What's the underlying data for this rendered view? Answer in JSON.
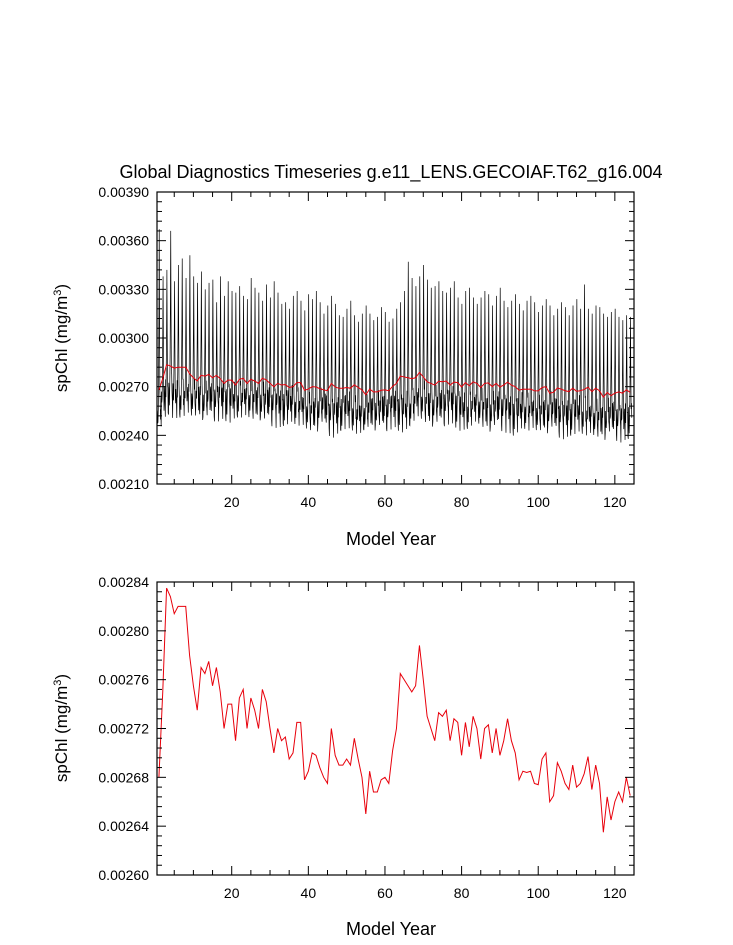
{
  "figure": {
    "title": "Global Diagnostics Timeseries g.e11_LENS.GECOIAF.T62_g16.004"
  },
  "chart_data": [
    {
      "type": "line",
      "xlabel": "Model Year",
      "ylabel_main": "spChl (mg/m",
      "ylabel_sup": "3",
      "ylabel_close": ")",
      "xlim": [
        0.5,
        125.0
      ],
      "ylim": [
        0.0021,
        0.0039
      ],
      "xticks": [
        20,
        40,
        60,
        80,
        100,
        120
      ],
      "xtick_labels": [
        "20",
        "40",
        "60",
        "80",
        "100",
        "120"
      ],
      "yticks": [
        0.0021,
        0.0024,
        0.0027,
        0.003,
        0.0033,
        0.0036,
        0.0039
      ],
      "ytick_labels": [
        "0.00210",
        "0.00240",
        "0.00270",
        "0.00300",
        "0.00330",
        "0.00360",
        "0.00390"
      ],
      "grid": false,
      "series": [
        {
          "color": "#000000",
          "description": "monthly values, seasonal cycle",
          "monthly_profile": [
            0.0,
            0.0,
            0.02,
            0.06,
            0.14,
            0.32,
            0.6,
            1.0,
            0.55,
            0.22,
            0.08,
            0.02
          ],
          "annual_peak_max": [
            0.00367,
            0.00338,
            0.00342,
            0.00366,
            0.00335,
            0.00345,
            0.00349,
            0.00337,
            0.00351,
            0.00338,
            0.00334,
            0.00341,
            0.0033,
            0.00334,
            0.00336,
            0.00322,
            0.00338,
            0.00326,
            0.00335,
            0.00329,
            0.00328,
            0.00332,
            0.00326,
            0.00324,
            0.00337,
            0.00331,
            0.00328,
            0.00323,
            0.00333,
            0.00325,
            0.00335,
            0.00328,
            0.00321,
            0.00322,
            0.00318,
            0.00326,
            0.00329,
            0.00323,
            0.00317,
            0.00327,
            0.00324,
            0.00329,
            0.00322,
            0.00315,
            0.0032,
            0.00326,
            0.00321,
            0.00314,
            0.00313,
            0.00318,
            0.00323,
            0.00314,
            0.0031,
            0.00315,
            0.0032,
            0.00315,
            0.00311,
            0.00313,
            0.00319,
            0.00316,
            0.0031,
            0.00312,
            0.00318,
            0.00322,
            0.00329,
            0.00347,
            0.00337,
            0.00332,
            0.00338,
            0.00345,
            0.00336,
            0.00331,
            0.00332,
            0.00335,
            0.00329,
            0.00328,
            0.00331,
            0.00335,
            0.00325,
            0.00321,
            0.00329,
            0.00331,
            0.00325,
            0.00321,
            0.00325,
            0.00329,
            0.00327,
            0.0032,
            0.00326,
            0.00331,
            0.00323,
            0.00319,
            0.00323,
            0.00327,
            0.00321,
            0.00317,
            0.00323,
            0.00326,
            0.00322,
            0.00316,
            0.0032,
            0.00324,
            0.0032,
            0.00314,
            0.00318,
            0.00322,
            0.00319,
            0.00314,
            0.0032,
            0.00324,
            0.00318,
            0.00333,
            0.00318,
            0.00315,
            0.0032,
            0.00319,
            0.00315,
            0.00313,
            0.00316,
            0.00318,
            0.00313,
            0.00311,
            0.00314,
            0.00313
          ],
          "annual_trough_min": [
            0.00238,
            0.00248,
            0.00252,
            0.00254,
            0.00252,
            0.0025,
            0.00251,
            0.00252,
            0.00252,
            0.00251,
            0.00251,
            0.0025,
            0.00249,
            0.0025,
            0.00251,
            0.00251,
            0.00251,
            0.00251,
            0.0025,
            0.00249,
            0.0025,
            0.00251,
            0.00251,
            0.00251,
            0.0025,
            0.00249,
            0.0025,
            0.00249,
            0.00248,
            0.00249,
            0.00248,
            0.00247,
            0.00246,
            0.00247,
            0.00248,
            0.00248,
            0.00247,
            0.00246,
            0.00245,
            0.00243,
            0.00242,
            0.00243,
            0.00245,
            0.00246,
            0.00244,
            0.00242,
            0.00241,
            0.00242,
            0.00244,
            0.00245,
            0.00244,
            0.00243,
            0.00241,
            0.0024,
            0.00242,
            0.00244,
            0.00244,
            0.00244,
            0.00244,
            0.00244,
            0.00245,
            0.00246,
            0.00246,
            0.00244,
            0.00243,
            0.00243,
            0.00246,
            0.00249,
            0.0025,
            0.00249,
            0.00247,
            0.00246,
            0.00246,
            0.00246,
            0.00247,
            0.00248,
            0.00249,
            0.00248,
            0.00246,
            0.00244,
            0.00243,
            0.00244,
            0.00246,
            0.00247,
            0.00246,
            0.00244,
            0.00243,
            0.00243,
            0.00244,
            0.00246,
            0.00245,
            0.00244,
            0.00242,
            0.00241,
            0.00243,
            0.00244,
            0.00244,
            0.00243,
            0.00243,
            0.00242,
            0.00242,
            0.00242,
            0.00243,
            0.00243,
            0.00242,
            0.00241,
            0.0024,
            0.0024,
            0.00241,
            0.00242,
            0.00242,
            0.00241,
            0.0024,
            0.0024,
            0.00239,
            0.00238,
            0.00238,
            0.00239,
            0.0024,
            0.0024,
            0.00239,
            0.00238,
            0.00238,
            0.00239
          ]
        },
        {
          "color": "#e8000b",
          "description": "annual means",
          "ref": "annual_mean"
        }
      ]
    },
    {
      "type": "line",
      "xlabel": "Model Year",
      "ylabel_main": "spChl (mg/m",
      "ylabel_sup": "3",
      "ylabel_close": ")",
      "xlim": [
        0.5,
        125.0
      ],
      "ylim": [
        0.0026,
        0.00284
      ],
      "xticks": [
        20,
        40,
        60,
        80,
        100,
        120
      ],
      "xtick_labels": [
        "20",
        "40",
        "60",
        "80",
        "100",
        "120"
      ],
      "yticks": [
        0.0026,
        0.00264,
        0.00268,
        0.00272,
        0.00276,
        0.0028,
        0.00284
      ],
      "ytick_labels": [
        "0.00260",
        "0.00264",
        "0.00268",
        "0.00272",
        "0.00276",
        "0.00280",
        "0.00284"
      ],
      "grid": false,
      "series": [
        {
          "color": "#e8000b",
          "x_start": 1,
          "x_step": 1,
          "annual_mean": [
            0.00268,
            0.00275,
            0.002835,
            0.002828,
            0.002814,
            0.00282,
            0.00282,
            0.00282,
            0.00278,
            0.002755,
            0.002735,
            0.00277,
            0.002765,
            0.002775,
            0.002755,
            0.00277,
            0.00275,
            0.00272,
            0.00274,
            0.00274,
            0.00271,
            0.002745,
            0.002752,
            0.00272,
            0.002745,
            0.002735,
            0.00272,
            0.002752,
            0.002742,
            0.00272,
            0.0027,
            0.00272,
            0.00271,
            0.002713,
            0.002695,
            0.0027,
            0.002725,
            0.002725,
            0.002678,
            0.002685,
            0.0027,
            0.002698,
            0.002688,
            0.00268,
            0.002675,
            0.00272,
            0.002698,
            0.00269,
            0.00269,
            0.002695,
            0.00269,
            0.002712,
            0.002695,
            0.00268,
            0.00265,
            0.002685,
            0.002668,
            0.002668,
            0.002678,
            0.00268,
            0.002675,
            0.002702,
            0.00272,
            0.002765,
            0.00276,
            0.002755,
            0.00275,
            0.002755,
            0.002788,
            0.00276,
            0.00273,
            0.00272,
            0.00271,
            0.002733,
            0.00273,
            0.002735,
            0.00271,
            0.002728,
            0.002725,
            0.002698,
            0.002725,
            0.002705,
            0.00273,
            0.00272,
            0.002695,
            0.00272,
            0.002723,
            0.0027,
            0.00272,
            0.002698,
            0.00271,
            0.002728,
            0.00271,
            0.0027,
            0.002678,
            0.002685,
            0.002684,
            0.002685,
            0.002675,
            0.002674,
            0.002695,
            0.0027,
            0.00266,
            0.002665,
            0.002692,
            0.002685,
            0.002675,
            0.00267,
            0.00269,
            0.002672,
            0.002675,
            0.002683,
            0.002697,
            0.00267,
            0.00269,
            0.002675,
            0.002635,
            0.002664,
            0.002645,
            0.00266,
            0.002668,
            0.00266,
            0.00268,
            0.002665
          ]
        }
      ]
    }
  ]
}
